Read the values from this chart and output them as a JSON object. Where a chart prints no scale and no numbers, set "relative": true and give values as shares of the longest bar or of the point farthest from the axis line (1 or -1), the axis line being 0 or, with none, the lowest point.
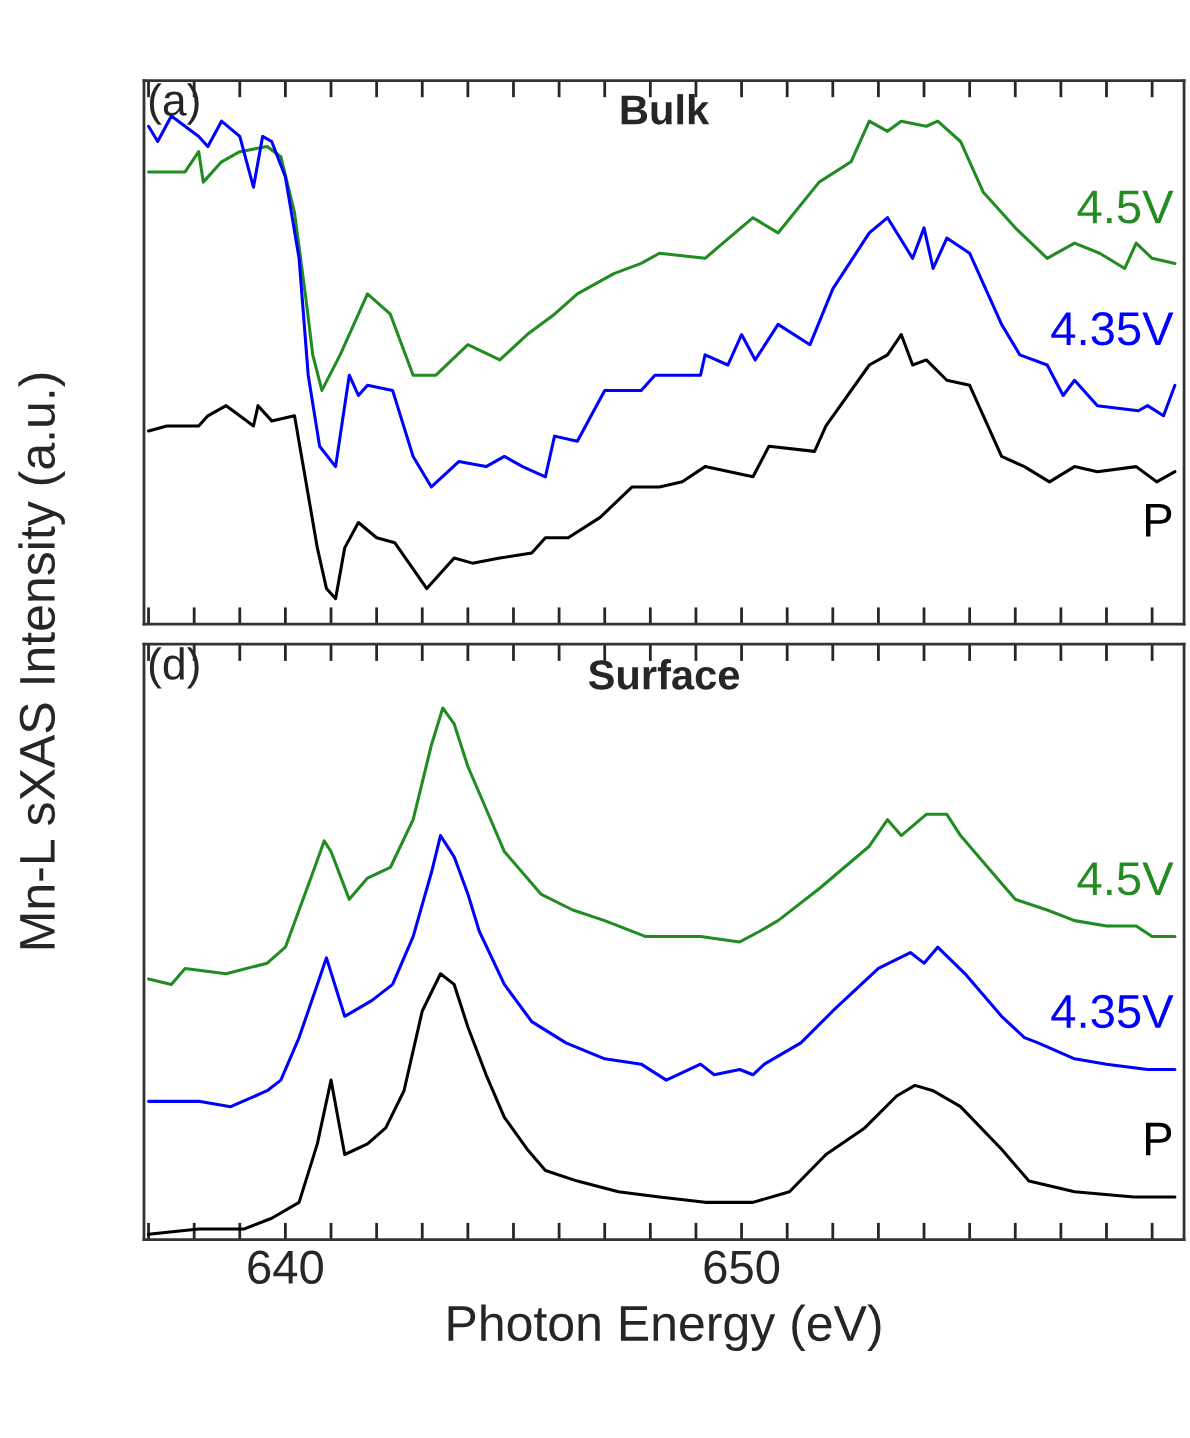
{
  "chart_data": [
    {
      "type": "line",
      "title": "Bulk",
      "annotations": [
        "(a)"
      ],
      "ylabel": "Mn-L sXAS Intensity (a.u.)",
      "relative": true,
      "tick_labels": false,
      "grid": false,
      "legend": false,
      "xlim": [
        636.9,
        659.7
      ],
      "xticks": [
        {
          "value": 637,
          "label": null
        },
        {
          "value": 638,
          "label": null
        },
        {
          "value": 639,
          "label": null
        },
        {
          "value": 640,
          "label": null
        },
        {
          "value": 641,
          "label": null
        },
        {
          "value": 642,
          "label": null
        },
        {
          "value": 643,
          "label": null
        },
        {
          "value": 644,
          "label": null
        },
        {
          "value": 645,
          "label": null
        },
        {
          "value": 646,
          "label": null
        },
        {
          "value": 647,
          "label": null
        },
        {
          "value": 648,
          "label": null
        },
        {
          "value": 649,
          "label": null
        },
        {
          "value": 650,
          "label": null
        },
        {
          "value": 651,
          "label": null
        },
        {
          "value": 652,
          "label": null
        },
        {
          "value": 653,
          "label": null
        },
        {
          "value": 654,
          "label": null
        },
        {
          "value": 655,
          "label": null
        },
        {
          "value": 656,
          "label": null
        },
        {
          "value": 657,
          "label": null
        },
        {
          "value": 658,
          "label": null
        },
        {
          "value": 659,
          "label": null
        }
      ],
      "series": [
        {
          "name": "4.5V",
          "color": "#228b22",
          "x": [
            637.0,
            637.8,
            638.1,
            638.2,
            638.6,
            639.0,
            639.6,
            639.9,
            640.2,
            640.45,
            640.6,
            640.8,
            641.2,
            641.8,
            642.3,
            642.8,
            643.3,
            644.0,
            644.7,
            645.3,
            645.9,
            646.4,
            647.2,
            647.8,
            648.2,
            649.2,
            650.25,
            650.8,
            651.7,
            652.4,
            652.8,
            653.2,
            653.5,
            654.05,
            654.3,
            654.8,
            655.3,
            656.0,
            656.7,
            657.3,
            657.85,
            658.4,
            658.65,
            659.0,
            659.5
          ],
          "values": [
            0.89,
            0.89,
            0.93,
            0.87,
            0.91,
            0.93,
            0.94,
            0.92,
            0.81,
            0.64,
            0.53,
            0.46,
            0.53,
            0.65,
            0.61,
            0.49,
            0.49,
            0.55,
            0.52,
            0.57,
            0.61,
            0.65,
            0.69,
            0.71,
            0.73,
            0.72,
            0.8,
            0.77,
            0.87,
            0.91,
            0.99,
            0.97,
            0.99,
            0.98,
            0.99,
            0.95,
            0.85,
            0.78,
            0.72,
            0.75,
            0.73,
            0.7,
            0.75,
            0.72,
            0.71
          ]
        },
        {
          "name": "4.35V",
          "color": "#0000ff",
          "x": [
            637.0,
            637.2,
            637.5,
            638.1,
            638.3,
            638.6,
            639.0,
            639.3,
            639.5,
            639.7,
            640.0,
            640.3,
            640.5,
            640.75,
            641.1,
            641.4,
            641.6,
            641.8,
            642.35,
            642.8,
            643.2,
            643.8,
            644.4,
            644.8,
            645.2,
            645.7,
            645.9,
            646.4,
            647.0,
            647.8,
            648.1,
            649.1,
            649.2,
            649.7,
            650.0,
            650.3,
            650.8,
            651.5,
            652.0,
            652.8,
            653.2,
            653.75,
            654.0,
            654.2,
            654.5,
            655.0,
            655.7,
            656.1,
            656.7,
            657.05,
            657.3,
            657.8,
            658.7,
            658.9,
            659.25,
            659.5
          ],
          "values": [
            0.98,
            0.95,
            1.0,
            0.96,
            0.94,
            0.99,
            0.96,
            0.86,
            0.96,
            0.95,
            0.88,
            0.72,
            0.49,
            0.35,
            0.31,
            0.49,
            0.45,
            0.47,
            0.46,
            0.33,
            0.27,
            0.32,
            0.31,
            0.33,
            0.31,
            0.29,
            0.37,
            0.36,
            0.46,
            0.46,
            0.49,
            0.49,
            0.53,
            0.51,
            0.57,
            0.52,
            0.59,
            0.55,
            0.66,
            0.77,
            0.8,
            0.72,
            0.78,
            0.7,
            0.76,
            0.73,
            0.59,
            0.53,
            0.51,
            0.45,
            0.48,
            0.43,
            0.42,
            0.43,
            0.41,
            0.47
          ]
        },
        {
          "name": "P",
          "color": "#000000",
          "x": [
            637.0,
            637.4,
            638.1,
            638.3,
            638.7,
            639.0,
            639.3,
            639.4,
            639.7,
            640.2,
            640.45,
            640.7,
            640.9,
            641.1,
            641.3,
            641.6,
            642.0,
            642.4,
            643.1,
            643.7,
            644.1,
            644.7,
            645.4,
            645.7,
            646.2,
            646.9,
            647.6,
            648.2,
            648.7,
            649.2,
            650.25,
            650.6,
            651.6,
            651.85,
            652.8,
            653.2,
            653.5,
            653.75,
            654.05,
            654.5,
            655.0,
            655.7,
            656.2,
            656.75,
            657.3,
            657.8,
            658.65,
            659.1,
            659.5
          ],
          "values": [
            0.38,
            0.39,
            0.39,
            0.41,
            0.43,
            0.41,
            0.39,
            0.43,
            0.4,
            0.41,
            0.28,
            0.15,
            0.07,
            0.05,
            0.15,
            0.2,
            0.17,
            0.16,
            0.07,
            0.13,
            0.12,
            0.13,
            0.14,
            0.17,
            0.17,
            0.21,
            0.27,
            0.27,
            0.28,
            0.31,
            0.29,
            0.35,
            0.34,
            0.39,
            0.51,
            0.53,
            0.57,
            0.51,
            0.52,
            0.48,
            0.47,
            0.33,
            0.31,
            0.28,
            0.31,
            0.3,
            0.31,
            0.28,
            0.3
          ]
        }
      ]
    },
    {
      "type": "line",
      "title": "Surface",
      "annotations": [
        "(d)"
      ],
      "xlabel": "Photon Energy (eV)",
      "relative": true,
      "tick_labels": "x",
      "grid": false,
      "legend": false,
      "xlim": [
        636.9,
        659.7
      ],
      "xticks": [
        {
          "value": 637,
          "label": null
        },
        {
          "value": 638,
          "label": null
        },
        {
          "value": 639,
          "label": null
        },
        640,
        {
          "value": 641,
          "label": null
        },
        {
          "value": 642,
          "label": null
        },
        {
          "value": 643,
          "label": null
        },
        {
          "value": 644,
          "label": null
        },
        {
          "value": 645,
          "label": null
        },
        {
          "value": 646,
          "label": null
        },
        {
          "value": 647,
          "label": null
        },
        {
          "value": 648,
          "label": null
        },
        {
          "value": 649,
          "label": null
        },
        650,
        {
          "value": 651,
          "label": null
        },
        {
          "value": 652,
          "label": null
        },
        {
          "value": 653,
          "label": null
        },
        {
          "value": 654,
          "label": null
        },
        {
          "value": 655,
          "label": null
        },
        {
          "value": 656,
          "label": null
        },
        {
          "value": 657,
          "label": null
        },
        {
          "value": 658,
          "label": null
        },
        {
          "value": 659,
          "label": null
        }
      ],
      "series": [
        {
          "name": "4.5V",
          "color": "#228b22",
          "x": [
            637.0,
            637.5,
            637.8,
            638.7,
            639.6,
            640.0,
            640.3,
            640.6,
            640.85,
            641.0,
            641.4,
            641.8,
            642.3,
            642.8,
            643.2,
            643.45,
            643.7,
            644.0,
            644.4,
            644.8,
            645.6,
            646.3,
            647.0,
            647.9,
            649.1,
            649.96,
            650.4,
            650.8,
            651.7,
            652.8,
            653.2,
            653.5,
            654.05,
            654.5,
            654.8,
            655.4,
            656.0,
            656.7,
            657.3,
            658.0,
            658.65,
            659.0,
            659.5
          ],
          "values": [
            0.49,
            0.48,
            0.51,
            0.5,
            0.52,
            0.55,
            0.62,
            0.69,
            0.75,
            0.73,
            0.64,
            0.68,
            0.7,
            0.79,
            0.93,
            1.0,
            0.97,
            0.89,
            0.81,
            0.73,
            0.65,
            0.62,
            0.6,
            0.57,
            0.57,
            0.56,
            0.58,
            0.6,
            0.66,
            0.74,
            0.79,
            0.76,
            0.8,
            0.8,
            0.76,
            0.7,
            0.64,
            0.62,
            0.6,
            0.59,
            0.59,
            0.57,
            0.57
          ]
        },
        {
          "name": "4.35V",
          "color": "#0000ff",
          "x": [
            637.0,
            638.1,
            638.8,
            639.6,
            639.9,
            640.3,
            640.7,
            640.9,
            641.3,
            641.9,
            642.35,
            642.8,
            643.2,
            643.4,
            643.7,
            644.0,
            644.25,
            644.8,
            645.4,
            646.15,
            647.0,
            647.8,
            648.35,
            649.1,
            649.4,
            649.96,
            650.25,
            650.5,
            651.3,
            652.0,
            653.0,
            653.7,
            654.0,
            654.3,
            654.9,
            655.7,
            656.2,
            656.5,
            657.3,
            658.0,
            658.9,
            659.5
          ],
          "values": [
            0.26,
            0.26,
            0.25,
            0.28,
            0.3,
            0.38,
            0.48,
            0.53,
            0.42,
            0.45,
            0.48,
            0.57,
            0.69,
            0.76,
            0.72,
            0.65,
            0.58,
            0.48,
            0.41,
            0.37,
            0.34,
            0.33,
            0.3,
            0.33,
            0.31,
            0.32,
            0.31,
            0.33,
            0.37,
            0.43,
            0.51,
            0.54,
            0.52,
            0.55,
            0.5,
            0.42,
            0.38,
            0.37,
            0.34,
            0.33,
            0.32,
            0.32
          ]
        },
        {
          "name": "P",
          "color": "#000000",
          "x": [
            637.0,
            638.1,
            639.1,
            639.7,
            640.3,
            640.7,
            641.0,
            641.3,
            641.8,
            642.2,
            642.6,
            643.0,
            643.4,
            643.7,
            644.0,
            644.4,
            644.8,
            645.3,
            645.7,
            646.4,
            647.3,
            648.2,
            649.2,
            650.25,
            651.05,
            651.85,
            652.7,
            653.4,
            653.8,
            654.2,
            654.8,
            655.7,
            656.3,
            657.3,
            658.6,
            659.5
          ],
          "values": [
            0.01,
            0.02,
            0.02,
            0.04,
            0.07,
            0.18,
            0.3,
            0.16,
            0.18,
            0.21,
            0.28,
            0.43,
            0.5,
            0.48,
            0.4,
            0.31,
            0.23,
            0.17,
            0.13,
            0.11,
            0.09,
            0.08,
            0.07,
            0.07,
            0.09,
            0.16,
            0.21,
            0.27,
            0.29,
            0.28,
            0.25,
            0.17,
            0.11,
            0.09,
            0.08,
            0.08
          ]
        }
      ]
    }
  ]
}
